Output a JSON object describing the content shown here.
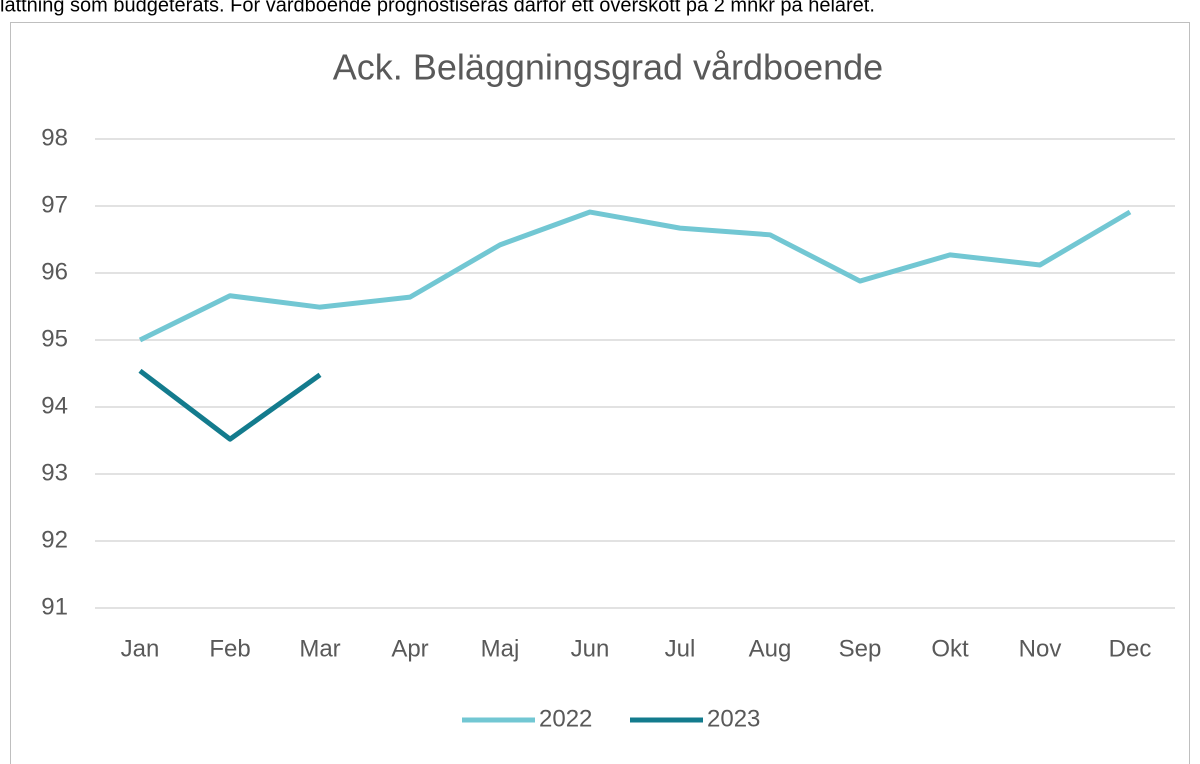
{
  "document": {
    "text": "lättning som budgeterats. För vårdboende prognostiseras därför ett överskott på 2 mnkr på helåret."
  },
  "chart_data": {
    "type": "line",
    "title": "Ack. Beläggningsgrad vårdboende",
    "categories": [
      "Jan",
      "Feb",
      "Mar",
      "Apr",
      "Maj",
      "Jun",
      "Jul",
      "Aug",
      "Sep",
      "Okt",
      "Nov",
      "Dec"
    ],
    "series": [
      {
        "name": "2022",
        "color": "#72c7d3",
        "values": [
          95.0,
          95.66,
          95.49,
          95.64,
          96.42,
          96.91,
          96.67,
          96.57,
          95.88,
          96.27,
          96.12,
          96.91
        ]
      },
      {
        "name": "2023",
        "color": "#137b8d",
        "values": [
          94.54,
          93.52,
          94.48,
          null,
          null,
          null,
          null,
          null,
          null,
          null,
          null,
          null
        ]
      }
    ],
    "ylim": [
      91,
      98
    ],
    "yticks": [
      91,
      92,
      93,
      94,
      95,
      96,
      97,
      98
    ],
    "grid": true,
    "legend": "bottom"
  }
}
